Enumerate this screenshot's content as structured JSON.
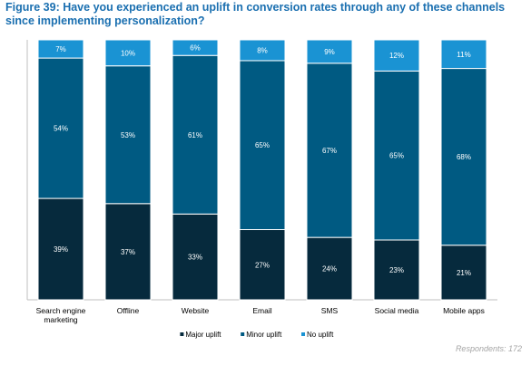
{
  "title": "Figure 39: Have you experienced an uplift in conversion rates through any of these channels since implementing personalization?",
  "footnote": "Respondents: 172",
  "colors": {
    "major": "#062a3d",
    "minor": "#005a82",
    "none": "#1a93d3",
    "axis": "#bfbfbf",
    "label_dark": "#ffffff"
  },
  "chart_data": {
    "type": "bar",
    "stacked": true,
    "percent_stacked": true,
    "categories": [
      "Search engine marketing",
      "Offline",
      "Website",
      "Email",
      "SMS",
      "Social media",
      "Mobile apps"
    ],
    "series": [
      {
        "name": "Major uplift",
        "values": [
          39,
          37,
          33,
          27,
          24,
          23,
          21
        ],
        "labels": [
          "39%",
          "37%",
          "33%",
          "27%",
          "24%",
          "23%",
          "21%"
        ]
      },
      {
        "name": "Minor uplift",
        "values": [
          54,
          53,
          61,
          65,
          67,
          65,
          68
        ],
        "labels": [
          "54%",
          "53%",
          "61%",
          "65%",
          "67%",
          "65%",
          "68%"
        ]
      },
      {
        "name": "No uplift",
        "values": [
          7,
          10,
          6,
          8,
          9,
          12,
          11
        ],
        "labels": [
          "7%",
          "10%",
          "6%",
          "8%",
          "9%",
          "12%",
          "11%"
        ]
      }
    ],
    "legend_position": "bottom",
    "grid": false
  }
}
